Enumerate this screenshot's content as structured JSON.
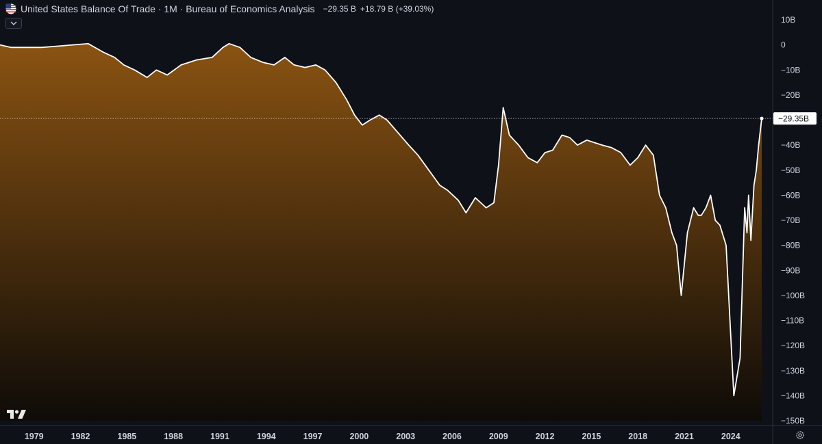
{
  "header": {
    "title": "United States Balance Of Trade · 1M · Bureau of Economics Analysis",
    "last_value": "−29.35 B",
    "change": "+18.79 B (+39.03%)"
  },
  "colors": {
    "background": "#0e1118",
    "line": "#ffffff",
    "area_top": "#8a5312",
    "area_bottom": "#0e0b08",
    "axis_text": "#d1d4dc"
  },
  "icons": {
    "flag": "us-flag-icon",
    "collapse": "chevron-down-icon",
    "logo": "tradingview-logo",
    "settings": "gear-icon"
  },
  "chart_data": {
    "type": "area",
    "title": "United States Balance Of Trade",
    "xlabel": "",
    "ylabel": "",
    "unit": "B",
    "ylim": [
      -150,
      10
    ],
    "grid": false,
    "last_value_label": "−29.35B",
    "y_ticks": [
      "10B",
      "0",
      "−10B",
      "−20B",
      "−40B",
      "−50B",
      "−60B",
      "−70B",
      "−80B",
      "−90B",
      "−100B",
      "−110B",
      "−120B",
      "−130B",
      "−140B",
      "−150B"
    ],
    "y_tick_values": [
      10,
      0,
      -10,
      -20,
      -40,
      -50,
      -60,
      -70,
      -80,
      -90,
      -100,
      -110,
      -120,
      -130,
      -140,
      -150
    ],
    "x_ticks": [
      "1979",
      "1982",
      "1985",
      "1988",
      "1991",
      "1994",
      "1997",
      "2000",
      "2003",
      "2006",
      "2009",
      "2012",
      "2015",
      "2018",
      "2021",
      "2024"
    ],
    "x_tick_values": [
      1979,
      1982,
      1985,
      1988,
      1991,
      1994,
      1997,
      2000,
      2003,
      2006,
      2009,
      2012,
      2015,
      2018,
      2021,
      2024
    ],
    "series": [
      {
        "x": [
          1976.8,
          1977.5,
          1978.5,
          1979.5,
          1980.5,
          1981.5,
          1982.5,
          1983.5,
          1984.2,
          1984.8,
          1985.5,
          1986.3,
          1986.9,
          1987.6,
          1988.5,
          1989.5,
          1990.5,
          1991.2,
          1991.6,
          1992.3,
          1993.0,
          1993.8,
          1994.5,
          1995.2,
          1995.8,
          1996.5,
          1997.2,
          1997.8,
          1998.5,
          1999.2,
          1999.7,
          2000.2,
          2000.7,
          2001.3,
          2001.8,
          2002.5,
          2003.2,
          2003.8,
          2004.5,
          2005.2,
          2005.7,
          2006.4,
          2006.9,
          2007.5,
          2008.2,
          2008.7,
          2009.0,
          2009.3,
          2009.7,
          2010.3,
          2010.9,
          2011.5,
          2012.0,
          2012.5,
          2013.1,
          2013.6,
          2014.1,
          2014.7,
          2015.2,
          2015.7,
          2016.3,
          2016.9,
          2017.5,
          2018.0,
          2018.5,
          2019.0,
          2019.4,
          2019.8,
          2020.2,
          2020.5,
          2020.8,
          2021.2,
          2021.6,
          2021.9,
          2022.1,
          2022.4,
          2022.7,
          2023.0,
          2023.3,
          2023.7,
          2024.2,
          2024.6,
          2024.9,
          2025.05,
          2025.15,
          2025.3,
          2025.5,
          2025.65,
          2025.8,
          2026.0
        ],
        "y": [
          0,
          -1,
          -1,
          -1,
          -0.5,
          0,
          0.5,
          -3,
          -5,
          -8,
          -10,
          -13,
          -10,
          -12,
          -8,
          -6,
          -5,
          -1,
          0.5,
          -1,
          -5,
          -7,
          -8,
          -5,
          -8,
          -9,
          -8,
          -10,
          -15,
          -22,
          -28,
          -32,
          -30,
          -28,
          -30,
          -35,
          -40,
          -44,
          -50,
          -56,
          -58,
          -62,
          -67,
          -61,
          -65,
          -63,
          -48,
          -25,
          -36,
          -40,
          -45,
          -47,
          -43,
          -42,
          -36,
          -37,
          -40,
          -38,
          -39,
          -40,
          -41,
          -43,
          -48,
          -45,
          -40,
          -44,
          -60,
          -65,
          -75,
          -80,
          -100,
          -75,
          -65,
          -68,
          -68,
          -65,
          -60,
          -70,
          -72,
          -80,
          -140,
          -125,
          -65,
          -75,
          -60,
          -78,
          -56,
          -50,
          -40,
          -29.35
        ]
      }
    ]
  }
}
